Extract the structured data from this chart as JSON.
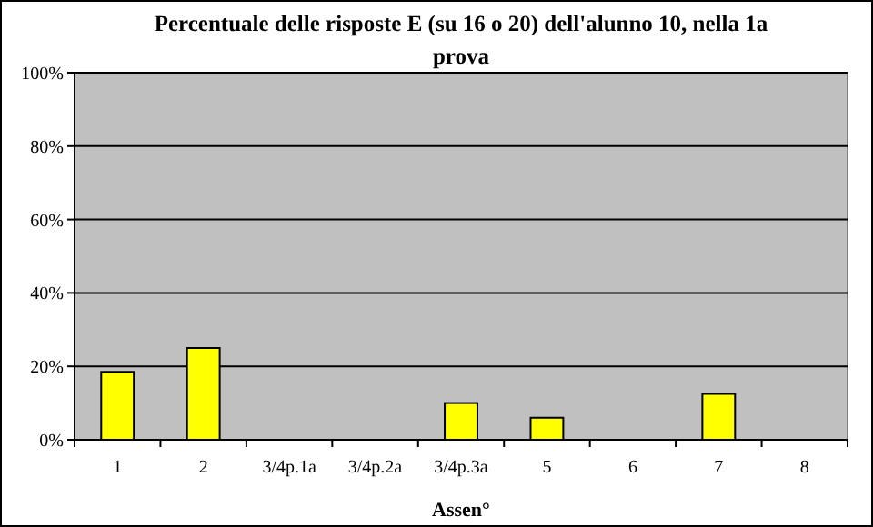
{
  "chart_data": {
    "type": "bar",
    "title": "Percentuale delle risposte E (su 16 o 20) dell'alunno 10, nella 1a prova",
    "xlabel": "Assen°",
    "categories": [
      "1",
      "2",
      "3/4p.1a",
      "3/4p.2a",
      "3/4p.3a",
      "5",
      "6",
      "7",
      "8"
    ],
    "values": [
      18.5,
      25,
      0,
      0,
      10,
      6,
      0,
      12.5,
      0
    ],
    "color": "#ffff00",
    "ylim": [
      0,
      100
    ],
    "yticks": [
      {
        "value": 0,
        "label": "0%"
      },
      {
        "value": 20,
        "label": "20%"
      },
      {
        "value": 40,
        "label": "40%"
      },
      {
        "value": 60,
        "label": "60%"
      },
      {
        "value": 80,
        "label": "80%"
      },
      {
        "value": 100,
        "label": "100%"
      }
    ],
    "grid": "y"
  }
}
